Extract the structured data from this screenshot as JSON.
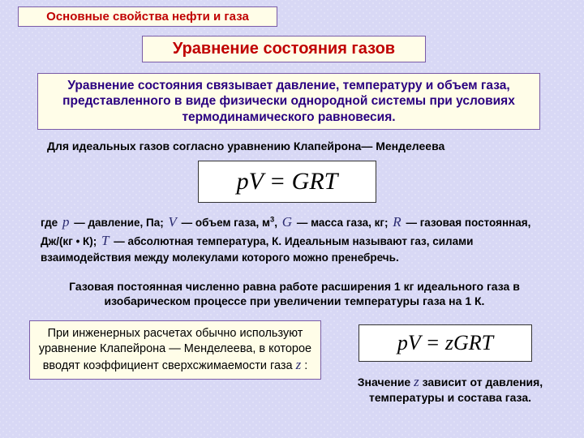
{
  "colors": {
    "background": "#d8d8f5",
    "box_border": "#7a5ca8",
    "box_fill": "#fffde8",
    "heading_text": "#c00000",
    "definition_text": "#2a0080",
    "body_text": "#000000",
    "math_var": "#2a2a70",
    "formula_border": "#333333",
    "formula_bg": "#ffffff"
  },
  "typography": {
    "body_font": "Arial, sans-serif",
    "math_font": "'Times New Roman', serif",
    "header_size_pt": 15,
    "title_size_pt": 20,
    "def_size_pt": 15.5,
    "body_size_pt": 14,
    "formula1_size_pt": 30,
    "formula2_size_pt": 26
  },
  "header": "Основные свойства нефти и газа",
  "title": "Уравнение состояния газов",
  "definition": "Уравнение состояния связывает давление, температуру и объем газа, представленного в виде физически однородной системы при условиях термодинамического равновесия.",
  "ideal_intro": "Для идеальных газов согласно уравнению Клапейрона— Менделеева",
  "formula1": "pV = GRT",
  "explain": {
    "t1": "где ",
    "v1": "p",
    "t2": " — давление, Па;   ",
    "v2": "V",
    "t3": " — объем газа, м",
    "sup": "3",
    "t3b": ", ",
    "v3": "G",
    "t4": " — масса газа, кг;   ",
    "v4": "R",
    "t5": " — газовая постоянная, Дж/(кг • К); ",
    "v5": "T",
    "t6": " — абсолютная температура, К. Идеальным называют газ, силами взаимодействия между молекулами которого можно пренебречь."
  },
  "gas_const": "Газовая постоянная численно равна работе расширения 1 кг идеального газа в изобарическом процессе при увеличении температуры газа на 1 К.",
  "eng_box": {
    "t1": "При инженерных расчетах обычно используют уравнение  Клапейрона — Менделеева, в которое вводят коэффициент сверхсжимаемости газа ",
    "var": "z",
    "t2": " :"
  },
  "formula2": "pV = zGRT",
  "z_note": {
    "t1": "Значение ",
    "var": "z",
    "t2": " зависит от давления, температуры и состава газа."
  }
}
